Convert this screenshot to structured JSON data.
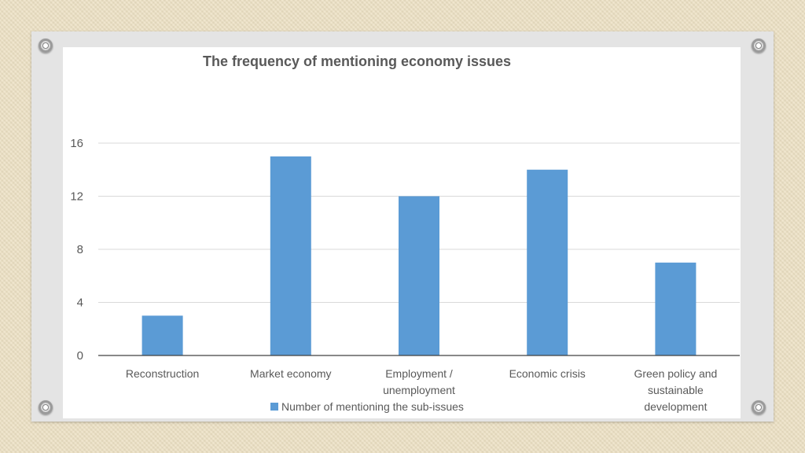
{
  "chart_data": {
    "type": "bar",
    "title": "The frequency of mentioning economy issues",
    "xlabel": "",
    "ylabel": "",
    "categories": [
      [
        "Reconstruction"
      ],
      [
        "Market economy"
      ],
      [
        "Employment /",
        "unemployment"
      ],
      [
        "Economic crisis"
      ],
      [
        "Green policy and",
        "sustainable",
        "development"
      ]
    ],
    "series": [
      {
        "name": "Number of mentioning the sub-issues",
        "values": [
          3,
          15,
          12,
          14,
          7
        ],
        "color": "#5b9bd5"
      }
    ],
    "ylim": [
      0,
      16
    ],
    "yticks": [
      0,
      4,
      8,
      12,
      16
    ],
    "grid": true,
    "legend": "bottom"
  }
}
